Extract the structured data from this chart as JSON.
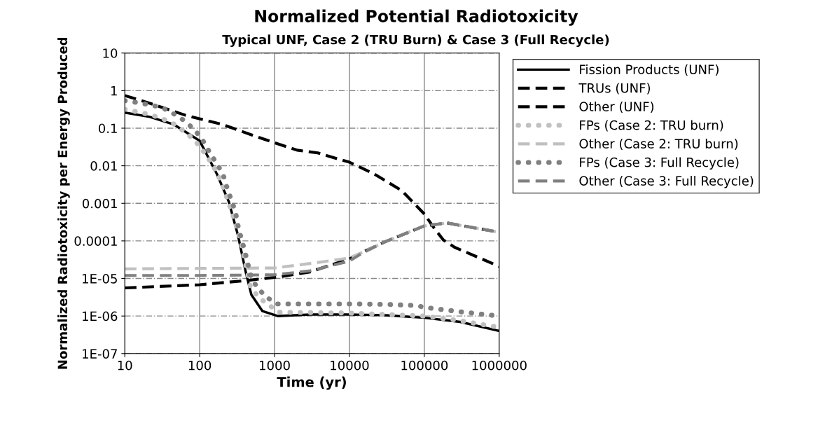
{
  "chart_data": {
    "type": "line",
    "title": "Normalized Potential Radiotoxicity",
    "subtitle": "Typical UNF, Case 2 (TRU Burn) & Case 3 (Full Recycle)",
    "xlabel": "Time (yr)",
    "ylabel": "Normalized Radiotoxicity per Energy Produced",
    "log": "xy",
    "grid": true,
    "legend": "right",
    "marker": "none",
    "xlim": [
      10,
      1000000
    ],
    "xticks": [
      10,
      100,
      1000,
      10000,
      100000,
      1000000
    ],
    "ylim": [
      1e-07,
      10
    ],
    "yticks": [
      {
        "value": 10,
        "label": "10"
      },
      {
        "value": 1,
        "label": "1"
      },
      {
        "value": 0.1,
        "label": "0.1"
      },
      {
        "value": 0.01,
        "label": "0.01"
      },
      {
        "value": 0.001,
        "label": "0.001"
      },
      {
        "value": 0.0001,
        "label": "0.0001"
      },
      {
        "value": 1e-05,
        "label": "1E-05"
      },
      {
        "value": 1e-06,
        "label": "1E-06"
      },
      {
        "value": 1e-07,
        "label": "1E-07"
      }
    ],
    "series": [
      {
        "name": "Fission Products (UNF)",
        "color": "#000000",
        "line_style": "solid",
        "x": [
          10,
          21.6,
          45,
          100,
          170,
          245,
          325,
          415,
          490,
          690,
          1100,
          3000,
          10000,
          30000,
          100000,
          300000,
          1000000
        ],
        "values": [
          0.26,
          0.2,
          0.126,
          0.046,
          0.006,
          0.0011,
          0.00014,
          1.4e-05,
          3.7e-06,
          1.35e-06,
          1e-06,
          1.1e-06,
          1.1e-06,
          1.05e-06,
          9e-07,
          7e-07,
          4e-07
        ]
      },
      {
        "name": "TRUs (UNF)",
        "color": "#000000",
        "line_style": "dashed",
        "x": [
          10,
          21.6,
          65,
          200,
          610,
          2000,
          3770,
          10000,
          21600,
          50000,
          100000,
          135000,
          180000,
          256000,
          1000000
        ],
        "values": [
          0.74,
          0.46,
          0.22,
          0.126,
          0.057,
          0.026,
          0.022,
          0.0124,
          0.006,
          0.00217,
          0.00052,
          0.00022,
          0.000105,
          6.7e-05,
          2.1e-05
        ]
      },
      {
        "name": "Other (UNF)",
        "color": "#000000",
        "line_style": "dashed",
        "x": [
          10,
          100,
          400,
          1140,
          3000,
          10000,
          15000,
          30000,
          100000,
          200000,
          1000000
        ],
        "values": [
          5.6e-06,
          6.8e-06,
          8.7e-06,
          1.1e-05,
          1.5e-05,
          3.3e-05,
          5e-05,
          9.5e-05,
          0.00025,
          0.0003,
          0.00017
        ]
      },
      {
        "name": "FPs (Case 2: TRU burn)",
        "color": "#c0c0c0",
        "line_style": "dotted",
        "x": [
          10,
          14.7,
          21.6,
          31.8,
          45,
          62,
          85,
          109,
          134,
          166,
          198,
          228,
          262,
          301,
          347,
          400,
          475,
          605,
          800,
          1150,
          10000,
          100000,
          300000,
          1000000
        ],
        "values": [
          0.32,
          0.27,
          0.23,
          0.18,
          0.13,
          0.082,
          0.049,
          0.026,
          0.0144,
          0.007,
          0.0034,
          0.0015,
          0.00069,
          0.00029,
          0.00012,
          3e-05,
          6.2e-06,
          3.2e-06,
          2.1e-06,
          1.26e-06,
          1.2e-06,
          1e-06,
          7.5e-07,
          5e-07
        ]
      },
      {
        "name": "Other (Case 2: TRU burn)",
        "color": "#c0c0c0",
        "line_style": "dashed",
        "x": [
          10,
          100,
          1000,
          3000,
          10000,
          15000,
          30000,
          100000,
          200000,
          1000000
        ],
        "values": [
          1.8e-05,
          1.85e-05,
          1.9e-05,
          2.5e-05,
          3.5e-05,
          5e-05,
          9.5e-05,
          0.00025,
          0.0003,
          0.00017
        ]
      },
      {
        "name": "FPs (Case 3: Full Recycle)",
        "color": "#808080",
        "line_style": "dotted",
        "x": [
          10,
          14.7,
          21.6,
          31.8,
          45,
          62,
          85,
          109,
          134,
          166,
          205,
          228,
          262,
          301,
          323,
          358,
          400,
          444,
          494,
          587,
          778,
          1070,
          3000,
          10000,
          30000,
          80000,
          100000,
          300000,
          1000000
        ],
        "values": [
          0.54,
          0.48,
          0.42,
          0.35,
          0.24,
          0.16,
          0.092,
          0.049,
          0.024,
          0.012,
          0.006,
          0.0029,
          0.0013,
          0.00059,
          0.00027,
          0.00012,
          5.5e-05,
          2.3e-05,
          1.03e-05,
          5.7e-06,
          3.2e-06,
          2.1e-06,
          2.1e-06,
          2.1e-06,
          2.05e-06,
          1.9e-06,
          1.7e-06,
          1.3e-06,
          1e-06
        ]
      },
      {
        "name": "Other (Case 3: Full Recycle)",
        "color": "#808080",
        "line_style": "dashed",
        "x": [
          10,
          100,
          1000,
          3000,
          10000,
          15000,
          30000,
          100000,
          200000,
          1000000
        ],
        "values": [
          1.2e-05,
          1.2e-05,
          1.25e-05,
          1.6e-05,
          2.9e-05,
          4.8e-05,
          9.5e-05,
          0.00025,
          0.0003,
          0.00017
        ]
      }
    ]
  }
}
